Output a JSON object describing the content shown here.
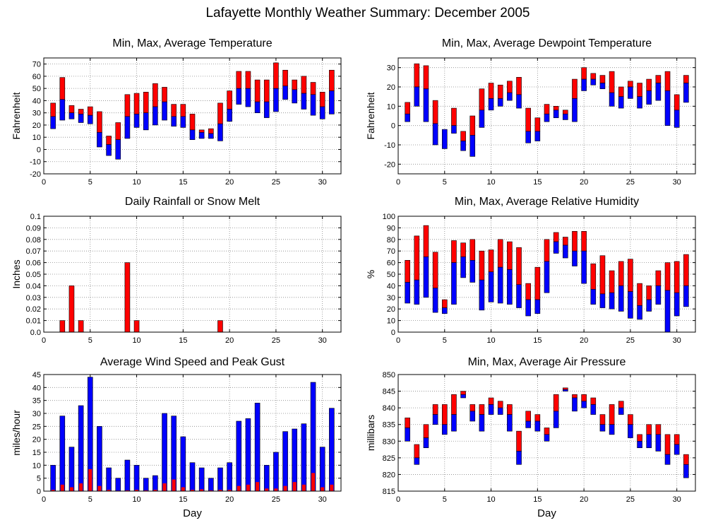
{
  "page": {
    "title": "Lafayette Monthly Weather Summary: December 2005"
  },
  "colors": {
    "max_segment": "#ff0000",
    "min_segment": "#0000ff",
    "grid": "#888888",
    "frame": "#000000"
  },
  "chart_data": [
    {
      "type": "bar",
      "id": "temp",
      "title": "Min, Max, Average Temperature",
      "ylabel": "Fahrenheit",
      "xlabel": "",
      "xlim": [
        0,
        32
      ],
      "xticks": [
        0,
        5,
        10,
        15,
        20,
        25,
        30
      ],
      "ylim": [
        -20,
        75
      ],
      "yticks": [
        -20,
        -10,
        0,
        10,
        20,
        30,
        40,
        50,
        60,
        70
      ],
      "grid": true,
      "days": [
        1,
        2,
        3,
        4,
        5,
        6,
        7,
        8,
        9,
        10,
        11,
        12,
        13,
        14,
        15,
        16,
        17,
        18,
        19,
        20,
        21,
        22,
        23,
        24,
        25,
        26,
        27,
        28,
        29,
        30,
        31
      ],
      "series": [
        {
          "name": "Min",
          "values": [
            17,
            24,
            25,
            22,
            21,
            2,
            -5,
            -8,
            9,
            18,
            16,
            20,
            24,
            19,
            18,
            8,
            9,
            9,
            7,
            23,
            37,
            35,
            30,
            26,
            31,
            41,
            38,
            33,
            28,
            25,
            29
          ]
        },
        {
          "name": "Average",
          "values": [
            27,
            41,
            30,
            29,
            28,
            14,
            4,
            8,
            27,
            29,
            30,
            35,
            39,
            27,
            27,
            16,
            14,
            13,
            21,
            33,
            50,
            50,
            39,
            39,
            50,
            52,
            49,
            46,
            45,
            35,
            48
          ]
        },
        {
          "name": "Max",
          "values": [
            38,
            59,
            36,
            33,
            35,
            31,
            11,
            22,
            45,
            46,
            47,
            54,
            51,
            37,
            37,
            29,
            16,
            17,
            38,
            48,
            64,
            64,
            57,
            57,
            71,
            65,
            57,
            60,
            55,
            47,
            65
          ]
        }
      ]
    },
    {
      "type": "bar",
      "id": "dewpoint",
      "title": "Min, Max, Average Dewpoint Temperature",
      "ylabel": "Fahrenheit",
      "xlabel": "",
      "xlim": [
        0,
        32
      ],
      "xticks": [
        0,
        5,
        10,
        15,
        20,
        25,
        30
      ],
      "ylim": [
        -25,
        35
      ],
      "yticks": [
        -20,
        -10,
        0,
        10,
        20,
        30
      ],
      "grid": true,
      "days": [
        1,
        2,
        3,
        4,
        5,
        6,
        7,
        8,
        9,
        10,
        11,
        12,
        13,
        14,
        15,
        16,
        17,
        18,
        19,
        20,
        21,
        22,
        23,
        24,
        25,
        26,
        27,
        28,
        29,
        30,
        31
      ],
      "series": [
        {
          "name": "Min",
          "values": [
            2,
            10,
            2,
            -10,
            -12,
            -4,
            -13,
            -16,
            -1,
            8,
            10,
            13,
            9,
            -9,
            -8,
            2,
            4,
            3,
            2,
            18,
            21,
            19,
            10,
            9,
            14,
            9,
            11,
            13,
            0,
            -1,
            12
          ]
        },
        {
          "name": "Average",
          "values": [
            6,
            20,
            19,
            1,
            -2,
            0,
            -8,
            -5,
            8,
            14,
            14,
            17,
            16,
            -3,
            -3,
            6,
            8,
            6,
            14,
            24,
            24,
            22,
            17,
            15,
            20,
            15,
            18,
            22,
            18,
            8,
            22
          ]
        },
        {
          "name": "Max",
          "values": [
            12,
            32,
            31,
            13,
            -2,
            9,
            -3,
            5,
            19,
            22,
            21,
            23,
            25,
            9,
            4,
            11,
            10,
            8,
            24,
            30,
            27,
            26,
            28,
            20,
            23,
            22,
            24,
            26,
            28,
            16,
            26
          ]
        }
      ]
    },
    {
      "type": "bar",
      "id": "rain",
      "title": "Daily Rainfall or Snow Melt",
      "ylabel": "Inches",
      "xlabel": "",
      "xlim": [
        0,
        32
      ],
      "xticks": [
        0,
        5,
        10,
        15,
        20,
        25,
        30
      ],
      "ylim": [
        0,
        0.1
      ],
      "yticks": [
        0,
        0.01,
        0.02,
        0.03,
        0.04,
        0.05,
        0.06,
        0.07,
        0.08,
        0.09,
        0.1
      ],
      "ytick_labels": [
        "0.0",
        "0.01",
        "0.02",
        "0.03",
        "0.04",
        "0.05",
        "0.06",
        "0.07",
        "0.08",
        "0.09",
        "0.1"
      ],
      "grid": true,
      "days": [
        2,
        3,
        4,
        9,
        10,
        19
      ],
      "series": [
        {
          "name": "Rainfall",
          "values": [
            0.01,
            0.04,
            0.01,
            0.06,
            0.01,
            0.01
          ]
        }
      ]
    },
    {
      "type": "bar",
      "id": "humidity",
      "title": "Min, Max, Average Relative Humidity",
      "ylabel": "%",
      "xlabel": "",
      "xlim": [
        0,
        32
      ],
      "xticks": [
        0,
        5,
        10,
        15,
        20,
        25,
        30
      ],
      "ylim": [
        0,
        100
      ],
      "yticks": [
        0,
        10,
        20,
        30,
        40,
        50,
        60,
        70,
        80,
        90,
        100
      ],
      "grid": true,
      "days": [
        1,
        2,
        3,
        4,
        5,
        6,
        7,
        8,
        9,
        10,
        11,
        12,
        13,
        14,
        15,
        16,
        17,
        18,
        19,
        20,
        21,
        22,
        23,
        24,
        25,
        26,
        27,
        28,
        29,
        30,
        31
      ],
      "series": [
        {
          "name": "Min",
          "values": [
            25,
            24,
            30,
            17,
            16,
            24,
            47,
            43,
            19,
            26,
            25,
            24,
            21,
            14,
            16,
            34,
            68,
            64,
            57,
            42,
            24,
            21,
            20,
            18,
            12,
            11,
            18,
            24,
            0,
            14,
            22
          ]
        },
        {
          "name": "Average",
          "values": [
            43,
            45,
            65,
            38,
            21,
            60,
            65,
            62,
            45,
            52,
            56,
            54,
            41,
            28,
            28,
            61,
            78,
            75,
            70,
            70,
            37,
            33,
            34,
            40,
            35,
            23,
            28,
            40,
            36,
            34,
            40
          ]
        },
        {
          "name": "Max",
          "values": [
            62,
            83,
            92,
            69,
            28,
            79,
            77,
            80,
            70,
            71,
            80,
            78,
            73,
            42,
            56,
            80,
            86,
            82,
            87,
            87,
            59,
            66,
            53,
            61,
            63,
            42,
            40,
            53,
            60,
            61,
            67
          ]
        }
      ]
    },
    {
      "type": "bar",
      "id": "wind",
      "title": "Average Wind Speed and Peak Gust",
      "ylabel": "miles/hour",
      "xlabel": "Day",
      "xlim": [
        0,
        32
      ],
      "xticks": [
        0,
        5,
        10,
        15,
        20,
        25,
        30
      ],
      "ylim": [
        0,
        45
      ],
      "yticks": [
        0,
        5,
        10,
        15,
        20,
        25,
        30,
        35,
        40,
        45
      ],
      "grid": true,
      "days": [
        1,
        2,
        3,
        4,
        5,
        6,
        7,
        8,
        9,
        10,
        11,
        12,
        13,
        14,
        15,
        16,
        17,
        18,
        19,
        20,
        21,
        22,
        23,
        24,
        25,
        26,
        27,
        28,
        29,
        30,
        31
      ],
      "series": [
        {
          "name": "Average",
          "values": [
            0.5,
            2.5,
            1.5,
            3,
            8.5,
            2,
            0.5,
            0.2,
            0.3,
            0.5,
            0.3,
            0.5,
            3,
            4.5,
            1.5,
            0.5,
            0.7,
            0.3,
            0.5,
            0.5,
            2,
            2.5,
            3.5,
            1,
            1,
            2,
            3.5,
            2.5,
            7,
            1.5,
            2.5
          ]
        },
        {
          "name": "Peak Gust",
          "values": [
            10,
            29,
            17,
            33,
            44,
            25,
            9,
            5,
            12,
            10,
            5,
            6,
            30,
            29,
            21,
            11,
            9,
            5,
            9,
            11,
            27,
            28,
            34,
            10,
            15,
            23,
            24,
            26,
            42,
            17,
            32
          ]
        }
      ]
    },
    {
      "type": "bar",
      "id": "pressure",
      "title": "Min, Max, Average Air Pressure",
      "ylabel": "millibars",
      "xlabel": "Day",
      "xlim": [
        0,
        32
      ],
      "xticks": [
        0,
        5,
        10,
        15,
        20,
        25,
        30
      ],
      "ylim": [
        815,
        850
      ],
      "yticks": [
        815,
        820,
        825,
        830,
        835,
        840,
        845,
        850
      ],
      "grid": true,
      "days": [
        1,
        2,
        3,
        4,
        5,
        6,
        7,
        8,
        9,
        10,
        11,
        12,
        13,
        14,
        15,
        16,
        17,
        18,
        19,
        20,
        21,
        22,
        23,
        24,
        25,
        26,
        27,
        28,
        29,
        30,
        31
      ],
      "series": [
        {
          "name": "Min",
          "values": [
            830,
            823,
            828,
            835,
            832,
            833,
            843,
            836,
            833,
            838,
            838,
            833,
            823,
            834,
            833,
            830,
            834,
            845,
            839,
            840,
            838,
            833,
            832,
            838,
            831,
            828,
            828,
            827,
            823,
            826,
            819
          ]
        },
        {
          "name": "Average",
          "values": [
            834,
            825,
            831,
            838,
            835,
            838,
            844,
            839,
            838,
            841,
            840,
            838,
            827,
            836,
            836,
            832,
            839,
            845.5,
            843,
            842,
            841,
            835,
            835,
            840,
            835,
            830,
            832,
            832,
            826,
            829,
            823
          ]
        },
        {
          "name": "Max",
          "values": [
            837,
            829,
            835,
            841,
            841,
            844,
            845,
            841,
            841,
            843,
            842,
            841,
            833,
            839,
            838,
            834,
            844,
            846,
            844,
            844,
            843,
            838,
            841,
            842,
            838,
            832,
            835,
            835,
            832,
            832,
            826
          ]
        }
      ]
    }
  ]
}
